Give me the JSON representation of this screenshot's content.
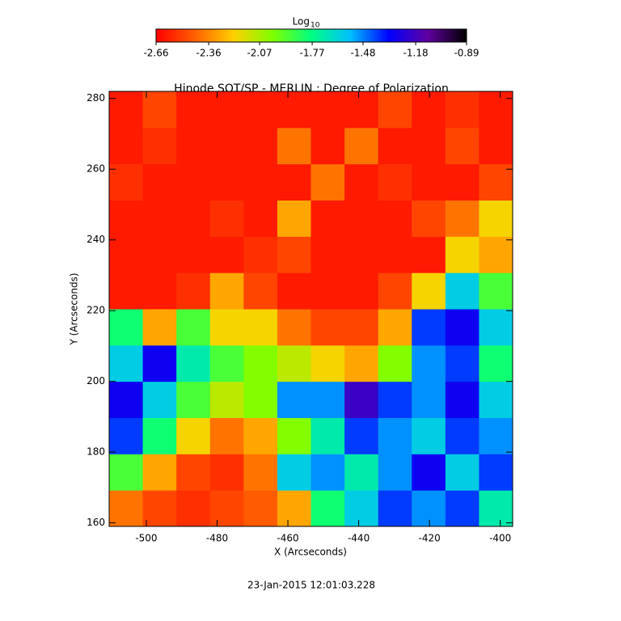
{
  "chart_data": {
    "type": "heatmap",
    "title": "Hinode SOT/SP - MERLIN : Degree of Polarization",
    "x_label": "X (Arcseconds)",
    "y_label": "Y (Arcseconds)",
    "footer": "23-Jan-2015 12:01:03.228",
    "colorbar_label": "Log",
    "colorbar_label_sub": "10",
    "clim": [
      -2.66,
      -0.89
    ],
    "cticks": [
      -2.66,
      -2.36,
      -2.07,
      -1.77,
      -1.48,
      -1.18,
      -0.89
    ],
    "colormap": [
      "#ff0000",
      "#ff6000",
      "#ffd000",
      "#80ff00",
      "#00ff80",
      "#00c0ff",
      "#0000ff",
      "#6000a0",
      "#000000"
    ],
    "xlim": [
      -510.5,
      -396.5
    ],
    "ylim": [
      159,
      282
    ],
    "xticks": [
      -500,
      -480,
      -460,
      -440,
      -420,
      -400
    ],
    "yticks": [
      160,
      180,
      200,
      220,
      240,
      260,
      280
    ],
    "xbins": [
      -510.5,
      -501,
      -491.5,
      -482,
      -472.5,
      -463,
      -453.5,
      -444,
      -434.5,
      -425,
      -415.5,
      -406,
      -396.5
    ],
    "ybins": [
      159,
      169.25,
      179.5,
      189.75,
      200,
      210.25,
      220.5,
      230.75,
      241,
      251.25,
      261.5,
      271.75,
      282
    ],
    "z": [
      [
        -2.4,
        -2.5,
        -2.55,
        -2.5,
        -2.45,
        -2.3,
        -1.8,
        -1.6,
        -1.4,
        -1.5,
        -1.4,
        -1.7
      ],
      [
        -1.9,
        -2.3,
        -2.5,
        -2.55,
        -2.4,
        -1.6,
        -1.5,
        -1.7,
        -1.5,
        -1.3,
        -1.6,
        -1.4
      ],
      [
        -1.4,
        -1.8,
        -2.2,
        -2.4,
        -2.3,
        -2.0,
        -1.7,
        -1.4,
        -1.5,
        -1.6,
        -1.4,
        -1.5
      ],
      [
        -1.3,
        -1.6,
        -1.9,
        -2.1,
        -2.0,
        -1.5,
        -1.5,
        -1.2,
        -1.4,
        -1.5,
        -1.3,
        -1.6
      ],
      [
        -1.6,
        -1.3,
        -1.7,
        -1.9,
        -2.0,
        -2.1,
        -2.2,
        -2.3,
        -2.0,
        -1.5,
        -1.4,
        -1.8
      ],
      [
        -1.8,
        -2.3,
        -1.9,
        -2.2,
        -2.2,
        -2.4,
        -2.5,
        -2.5,
        -2.3,
        -1.4,
        -1.3,
        -1.6
      ],
      [
        -2.6,
        -2.6,
        -2.55,
        -2.3,
        -2.5,
        -2.6,
        -2.6,
        -2.6,
        -2.5,
        -2.2,
        -1.6,
        -1.9
      ],
      [
        -2.6,
        -2.6,
        -2.6,
        -2.6,
        -2.55,
        -2.5,
        -2.6,
        -2.6,
        -2.6,
        -2.6,
        -2.2,
        -2.3
      ],
      [
        -2.6,
        -2.6,
        -2.6,
        -2.55,
        -2.6,
        -2.3,
        -2.6,
        -2.6,
        -2.6,
        -2.5,
        -2.4,
        -2.2
      ],
      [
        -2.55,
        -2.6,
        -2.6,
        -2.6,
        -2.6,
        -2.6,
        -2.4,
        -2.6,
        -2.55,
        -2.6,
        -2.6,
        -2.5
      ],
      [
        -2.6,
        -2.55,
        -2.6,
        -2.6,
        -2.6,
        -2.4,
        -2.6,
        -2.4,
        -2.6,
        -2.6,
        -2.5,
        -2.6
      ],
      [
        -2.6,
        -2.5,
        -2.6,
        -2.6,
        -2.6,
        -2.6,
        -2.6,
        -2.6,
        -2.5,
        -2.6,
        -2.55,
        -2.6
      ]
    ]
  }
}
